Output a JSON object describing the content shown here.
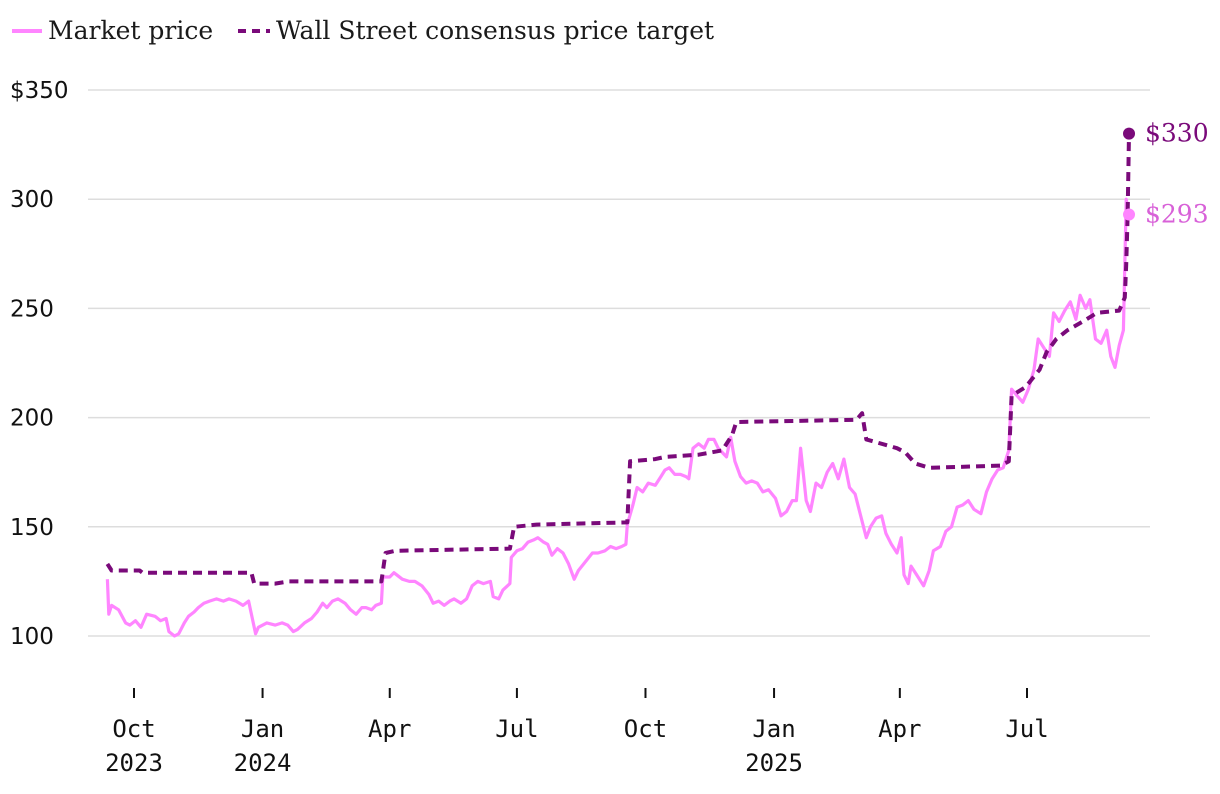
{
  "legend": [
    {
      "label": "Market price",
      "style": "solid"
    },
    {
      "label": "Wall Street consensus price target",
      "style": "dashed"
    }
  ],
  "colors": {
    "market": "#ff85ff",
    "target": "#7a0a7a",
    "market_label": "#d861d8",
    "grid": "#dddddd"
  },
  "chart_data": {
    "type": "line",
    "title": "",
    "xlabel": "",
    "ylabel": "",
    "ylim": [
      80,
      355
    ],
    "xlim": [
      "2023-09-01",
      "2025-10-10"
    ],
    "yticks": [
      {
        "value": 350,
        "label": "$350"
      },
      {
        "value": 300,
        "label": "300"
      },
      {
        "value": 250,
        "label": "250"
      },
      {
        "value": 200,
        "label": "200"
      },
      {
        "value": 150,
        "label": "150"
      },
      {
        "value": 100,
        "label": "100"
      }
    ],
    "xticks": [
      {
        "date": "2023-10-01",
        "label": "Oct",
        "label2": "2023"
      },
      {
        "date": "2024-01-01",
        "label": "Jan",
        "label2": "2024"
      },
      {
        "date": "2024-04-01",
        "label": "Apr",
        "label2": ""
      },
      {
        "date": "2024-07-01",
        "label": "Jul",
        "label2": ""
      },
      {
        "date": "2024-10-01",
        "label": "Oct",
        "label2": ""
      },
      {
        "date": "2025-01-01",
        "label": "Jan",
        "label2": "2025"
      },
      {
        "date": "2025-04-01",
        "label": "Apr",
        "label2": ""
      },
      {
        "date": "2025-07-01",
        "label": "Jul",
        "label2": ""
      }
    ],
    "grid": true,
    "legend_position": "top-left",
    "series": [
      {
        "name": "Market price",
        "style": "solid",
        "points": [
          [
            "2023-09-12",
            126
          ],
          [
            "2023-09-13",
            110
          ],
          [
            "2023-09-15",
            114
          ],
          [
            "2023-09-20",
            112
          ],
          [
            "2023-09-25",
            106
          ],
          [
            "2023-09-28",
            105
          ],
          [
            "2023-10-02",
            107
          ],
          [
            "2023-10-06",
            104
          ],
          [
            "2023-10-10",
            110
          ],
          [
            "2023-10-16",
            109
          ],
          [
            "2023-10-20",
            107
          ],
          [
            "2023-10-24",
            108
          ],
          [
            "2023-10-26",
            102
          ],
          [
            "2023-10-30",
            100
          ],
          [
            "2023-11-02",
            101
          ],
          [
            "2023-11-06",
            106
          ],
          [
            "2023-11-09",
            109
          ],
          [
            "2023-11-13",
            111
          ],
          [
            "2023-11-16",
            113
          ],
          [
            "2023-11-20",
            115
          ],
          [
            "2023-11-24",
            116
          ],
          [
            "2023-11-29",
            117
          ],
          [
            "2023-12-04",
            116
          ],
          [
            "2023-12-08",
            117
          ],
          [
            "2023-12-13",
            116
          ],
          [
            "2023-12-18",
            114
          ],
          [
            "2023-12-22",
            116
          ],
          [
            "2023-12-27",
            101
          ],
          [
            "2023-12-29",
            104
          ],
          [
            "2024-01-04",
            106
          ],
          [
            "2024-01-10",
            105
          ],
          [
            "2024-01-15",
            106
          ],
          [
            "2024-01-19",
            105
          ],
          [
            "2024-01-23",
            102
          ],
          [
            "2024-01-26",
            103
          ],
          [
            "2024-01-31",
            106
          ],
          [
            "2024-02-05",
            108
          ],
          [
            "2024-02-09",
            111
          ],
          [
            "2024-02-13",
            115
          ],
          [
            "2024-02-16",
            113
          ],
          [
            "2024-02-20",
            116
          ],
          [
            "2024-02-24",
            117
          ],
          [
            "2024-02-29",
            115
          ],
          [
            "2024-03-04",
            112
          ],
          [
            "2024-03-08",
            110
          ],
          [
            "2024-03-12",
            113
          ],
          [
            "2024-03-15",
            113
          ],
          [
            "2024-03-19",
            112
          ],
          [
            "2024-03-22",
            114
          ],
          [
            "2024-03-26",
            115
          ],
          [
            "2024-03-27",
            127
          ],
          [
            "2024-04-01",
            127
          ],
          [
            "2024-04-04",
            129
          ],
          [
            "2024-04-10",
            126
          ],
          [
            "2024-04-15",
            125
          ],
          [
            "2024-04-19",
            125
          ],
          [
            "2024-04-24",
            123
          ],
          [
            "2024-04-29",
            119
          ],
          [
            "2024-05-02",
            115
          ],
          [
            "2024-05-06",
            116
          ],
          [
            "2024-05-10",
            114
          ],
          [
            "2024-05-14",
            116
          ],
          [
            "2024-05-17",
            117
          ],
          [
            "2024-05-22",
            115
          ],
          [
            "2024-05-26",
            117
          ],
          [
            "2024-05-30",
            123
          ],
          [
            "2024-06-03",
            125
          ],
          [
            "2024-06-07",
            124
          ],
          [
            "2024-06-12",
            125
          ],
          [
            "2024-06-14",
            118
          ],
          [
            "2024-06-18",
            117
          ],
          [
            "2024-06-21",
            121
          ],
          [
            "2024-06-26",
            124
          ],
          [
            "2024-06-27",
            136
          ],
          [
            "2024-07-01",
            139
          ],
          [
            "2024-07-05",
            140
          ],
          [
            "2024-07-09",
            143
          ],
          [
            "2024-07-13",
            144
          ],
          [
            "2024-07-16",
            145
          ],
          [
            "2024-07-20",
            143
          ],
          [
            "2024-07-23",
            142
          ],
          [
            "2024-07-26",
            137
          ],
          [
            "2024-07-30",
            140
          ],
          [
            "2024-08-03",
            138
          ],
          [
            "2024-08-07",
            133
          ],
          [
            "2024-08-11",
            126
          ],
          [
            "2024-08-14",
            130
          ],
          [
            "2024-08-19",
            134
          ],
          [
            "2024-08-24",
            138
          ],
          [
            "2024-08-28",
            138
          ],
          [
            "2024-09-02",
            139
          ],
          [
            "2024-09-06",
            141
          ],
          [
            "2024-09-10",
            140
          ],
          [
            "2024-09-14",
            141
          ],
          [
            "2024-09-17",
            142
          ],
          [
            "2024-09-18",
            151
          ],
          [
            "2024-09-22",
            160
          ],
          [
            "2024-09-25",
            168
          ],
          [
            "2024-09-29",
            166
          ],
          [
            "2024-10-03",
            170
          ],
          [
            "2024-10-08",
            169
          ],
          [
            "2024-10-12",
            173
          ],
          [
            "2024-10-15",
            176
          ],
          [
            "2024-10-18",
            177
          ],
          [
            "2024-10-22",
            174
          ],
          [
            "2024-10-26",
            174
          ],
          [
            "2024-10-30",
            173
          ],
          [
            "2024-11-01",
            172
          ],
          [
            "2024-11-04",
            186
          ],
          [
            "2024-11-08",
            188
          ],
          [
            "2024-11-12",
            186
          ],
          [
            "2024-11-15",
            190
          ],
          [
            "2024-11-19",
            190
          ],
          [
            "2024-11-22",
            186
          ],
          [
            "2024-11-25",
            184
          ],
          [
            "2024-11-28",
            182
          ],
          [
            "2024-12-01",
            191
          ],
          [
            "2024-12-04",
            180
          ],
          [
            "2024-12-08",
            173
          ],
          [
            "2024-12-12",
            170
          ],
          [
            "2024-12-16",
            171
          ],
          [
            "2024-12-20",
            170
          ],
          [
            "2024-12-24",
            166
          ],
          [
            "2024-12-28",
            167
          ],
          [
            "2025-01-02",
            163
          ],
          [
            "2025-01-06",
            155
          ],
          [
            "2025-01-10",
            157
          ],
          [
            "2025-01-14",
            162
          ],
          [
            "2025-01-17",
            162
          ],
          [
            "2025-01-20",
            186
          ],
          [
            "2025-01-24",
            162
          ],
          [
            "2025-01-27",
            157
          ],
          [
            "2025-01-31",
            170
          ],
          [
            "2025-02-04",
            168
          ],
          [
            "2025-02-08",
            175
          ],
          [
            "2025-02-12",
            179
          ],
          [
            "2025-02-16",
            172
          ],
          [
            "2025-02-20",
            181
          ],
          [
            "2025-02-24",
            168
          ],
          [
            "2025-02-28",
            165
          ],
          [
            "2025-03-04",
            155
          ],
          [
            "2025-03-08",
            145
          ],
          [
            "2025-03-11",
            150
          ],
          [
            "2025-03-15",
            154
          ],
          [
            "2025-03-19",
            155
          ],
          [
            "2025-03-22",
            147
          ],
          [
            "2025-03-26",
            142
          ],
          [
            "2025-03-30",
            138
          ],
          [
            "2025-04-02",
            145
          ],
          [
            "2025-04-04",
            128
          ],
          [
            "2025-04-07",
            124
          ],
          [
            "2025-04-09",
            132
          ],
          [
            "2025-04-13",
            128
          ],
          [
            "2025-04-18",
            123
          ],
          [
            "2025-04-22",
            130
          ],
          [
            "2025-04-25",
            139
          ],
          [
            "2025-04-30",
            141
          ],
          [
            "2025-05-04",
            148
          ],
          [
            "2025-05-08",
            150
          ],
          [
            "2025-05-12",
            159
          ],
          [
            "2025-05-16",
            160
          ],
          [
            "2025-05-20",
            162
          ],
          [
            "2025-05-24",
            158
          ],
          [
            "2025-05-29",
            156
          ],
          [
            "2025-06-02",
            166
          ],
          [
            "2025-06-06",
            172
          ],
          [
            "2025-06-10",
            176
          ],
          [
            "2025-06-14",
            177
          ],
          [
            "2025-06-18",
            185
          ],
          [
            "2025-06-20",
            213
          ],
          [
            "2025-06-24",
            210
          ],
          [
            "2025-06-28",
            207
          ],
          [
            "2025-07-02",
            213
          ],
          [
            "2025-07-06",
            222
          ],
          [
            "2025-07-09",
            236
          ],
          [
            "2025-07-13",
            232
          ],
          [
            "2025-07-17",
            228
          ],
          [
            "2025-07-20",
            248
          ],
          [
            "2025-07-24",
            244
          ],
          [
            "2025-07-28",
            249
          ],
          [
            "2025-08-01",
            253
          ],
          [
            "2025-08-05",
            245
          ],
          [
            "2025-08-08",
            256
          ],
          [
            "2025-08-12",
            250
          ],
          [
            "2025-08-15",
            254
          ],
          [
            "2025-08-19",
            236
          ],
          [
            "2025-08-23",
            234
          ],
          [
            "2025-08-27",
            240
          ],
          [
            "2025-08-30",
            228
          ],
          [
            "2025-09-02",
            223
          ],
          [
            "2025-09-05",
            233
          ],
          [
            "2025-09-08",
            240
          ],
          [
            "2025-09-10",
            300
          ],
          [
            "2025-09-12",
            293
          ]
        ]
      },
      {
        "name": "Wall Street consensus price target",
        "style": "dashed",
        "points": [
          [
            "2023-09-12",
            133
          ],
          [
            "2023-09-15",
            130
          ],
          [
            "2023-10-05",
            130
          ],
          [
            "2023-10-07",
            129
          ],
          [
            "2023-12-24",
            129
          ],
          [
            "2023-12-26",
            124
          ],
          [
            "2024-01-10",
            124
          ],
          [
            "2024-01-20",
            125
          ],
          [
            "2024-03-26",
            125
          ],
          [
            "2024-03-29",
            138
          ],
          [
            "2024-04-05",
            139
          ],
          [
            "2024-06-26",
            140
          ],
          [
            "2024-06-29",
            150
          ],
          [
            "2024-07-15",
            151
          ],
          [
            "2024-09-18",
            152
          ],
          [
            "2024-09-20",
            180
          ],
          [
            "2024-10-08",
            181
          ],
          [
            "2024-10-15",
            182
          ],
          [
            "2024-11-08",
            183
          ],
          [
            "2024-11-25",
            185
          ],
          [
            "2024-12-02",
            192
          ],
          [
            "2024-12-05",
            198
          ],
          [
            "2025-03-01",
            199
          ],
          [
            "2025-03-05",
            202
          ],
          [
            "2025-03-08",
            190
          ],
          [
            "2025-03-30",
            186
          ],
          [
            "2025-04-05",
            184
          ],
          [
            "2025-04-12",
            179
          ],
          [
            "2025-04-22",
            177
          ],
          [
            "2025-06-12",
            178
          ],
          [
            "2025-06-18",
            180
          ],
          [
            "2025-06-20",
            210
          ],
          [
            "2025-06-30",
            214
          ],
          [
            "2025-07-10",
            222
          ],
          [
            "2025-07-15",
            230
          ],
          [
            "2025-07-22",
            236
          ],
          [
            "2025-07-30",
            240
          ],
          [
            "2025-08-10",
            244
          ],
          [
            "2025-08-20",
            248
          ],
          [
            "2025-09-05",
            249
          ],
          [
            "2025-09-09",
            255
          ],
          [
            "2025-09-10",
            270
          ],
          [
            "2025-09-11",
            292
          ],
          [
            "2025-09-12",
            330
          ]
        ]
      }
    ],
    "end_labels": [
      {
        "series": "Wall Street consensus price target",
        "text": "$330",
        "value": 330
      },
      {
        "series": "Market price",
        "text": "$293",
        "value": 293
      }
    ]
  }
}
